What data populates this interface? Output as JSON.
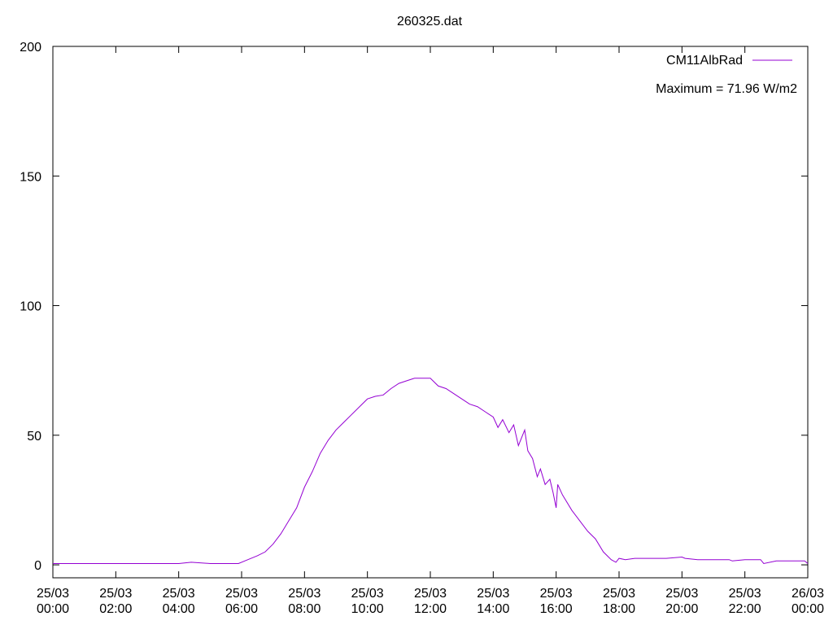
{
  "chart_data": {
    "type": "line",
    "title": "260325.dat",
    "annotation": "Maximum = 71.96 W/m2",
    "x": [
      0,
      1,
      2,
      3,
      4,
      4.4,
      5,
      5.9,
      6.2,
      6.5,
      6.75,
      7,
      7.25,
      7.5,
      7.75,
      8,
      8.25,
      8.5,
      8.75,
      9,
      9.25,
      9.5,
      9.75,
      10,
      10.25,
      10.5,
      10.75,
      11,
      11.25,
      11.5,
      11.75,
      12,
      12.25,
      12.5,
      12.75,
      13,
      13.25,
      13.5,
      13.75,
      14,
      14.15,
      14.3,
      14.5,
      14.65,
      14.8,
      15,
      15.1,
      15.25,
      15.4,
      15.5,
      15.65,
      15.8,
      15.9,
      16,
      16.05,
      16.2,
      16.5,
      16.75,
      17,
      17.25,
      17.5,
      17.75,
      17.9,
      18,
      18.2,
      18.5,
      19,
      19.5,
      20,
      20.1,
      20.5,
      21,
      21.5,
      21.6,
      22,
      22.5,
      22.6,
      23,
      23.5,
      23.9,
      24
    ],
    "series": [
      {
        "name": "CM11AlbRad",
        "color": "#9400d3",
        "values": [
          0.5,
          0.5,
          0.5,
          0.5,
          0.5,
          1,
          0.5,
          0.5,
          2,
          3.5,
          5,
          8,
          12,
          17,
          22,
          30,
          36,
          43,
          48,
          52,
          55,
          58,
          61,
          64,
          65,
          65.5,
          68,
          70,
          71,
          72,
          72,
          72,
          69,
          68,
          66,
          64,
          62,
          61,
          59,
          57,
          53,
          56,
          51,
          54,
          46,
          52,
          44,
          41,
          34,
          37,
          31,
          33,
          28,
          22,
          31,
          27,
          21,
          17,
          13,
          10,
          5,
          2,
          1,
          2.5,
          2,
          2.5,
          2.5,
          2.5,
          3,
          2.5,
          2,
          2,
          2,
          1.5,
          2,
          2,
          0.5,
          1.5,
          1.5,
          1.5,
          0.5
        ]
      }
    ],
    "xlim": [
      0,
      24
    ],
    "xticks": [
      {
        "value": 0,
        "label": "25/03 00:00"
      },
      {
        "value": 2,
        "label": "25/03 02:00"
      },
      {
        "value": 4,
        "label": "25/03 04:00"
      },
      {
        "value": 6,
        "label": "25/03 06:00"
      },
      {
        "value": 8,
        "label": "25/03 08:00"
      },
      {
        "value": 10,
        "label": "25/03 10:00"
      },
      {
        "value": 12,
        "label": "25/03 12:00"
      },
      {
        "value": 14,
        "label": "25/03 14:00"
      },
      {
        "value": 16,
        "label": "25/03 16:00"
      },
      {
        "value": 18,
        "label": "25/03 18:00"
      },
      {
        "value": 20,
        "label": "25/03 20:00"
      },
      {
        "value": 22,
        "label": "25/03 22:00"
      },
      {
        "value": 24,
        "label": "26/03 00:00"
      }
    ],
    "ylim": [
      -5,
      200
    ],
    "yticks": [
      0,
      50,
      100,
      150,
      200
    ],
    "grid": false,
    "legend": "upper right"
  }
}
